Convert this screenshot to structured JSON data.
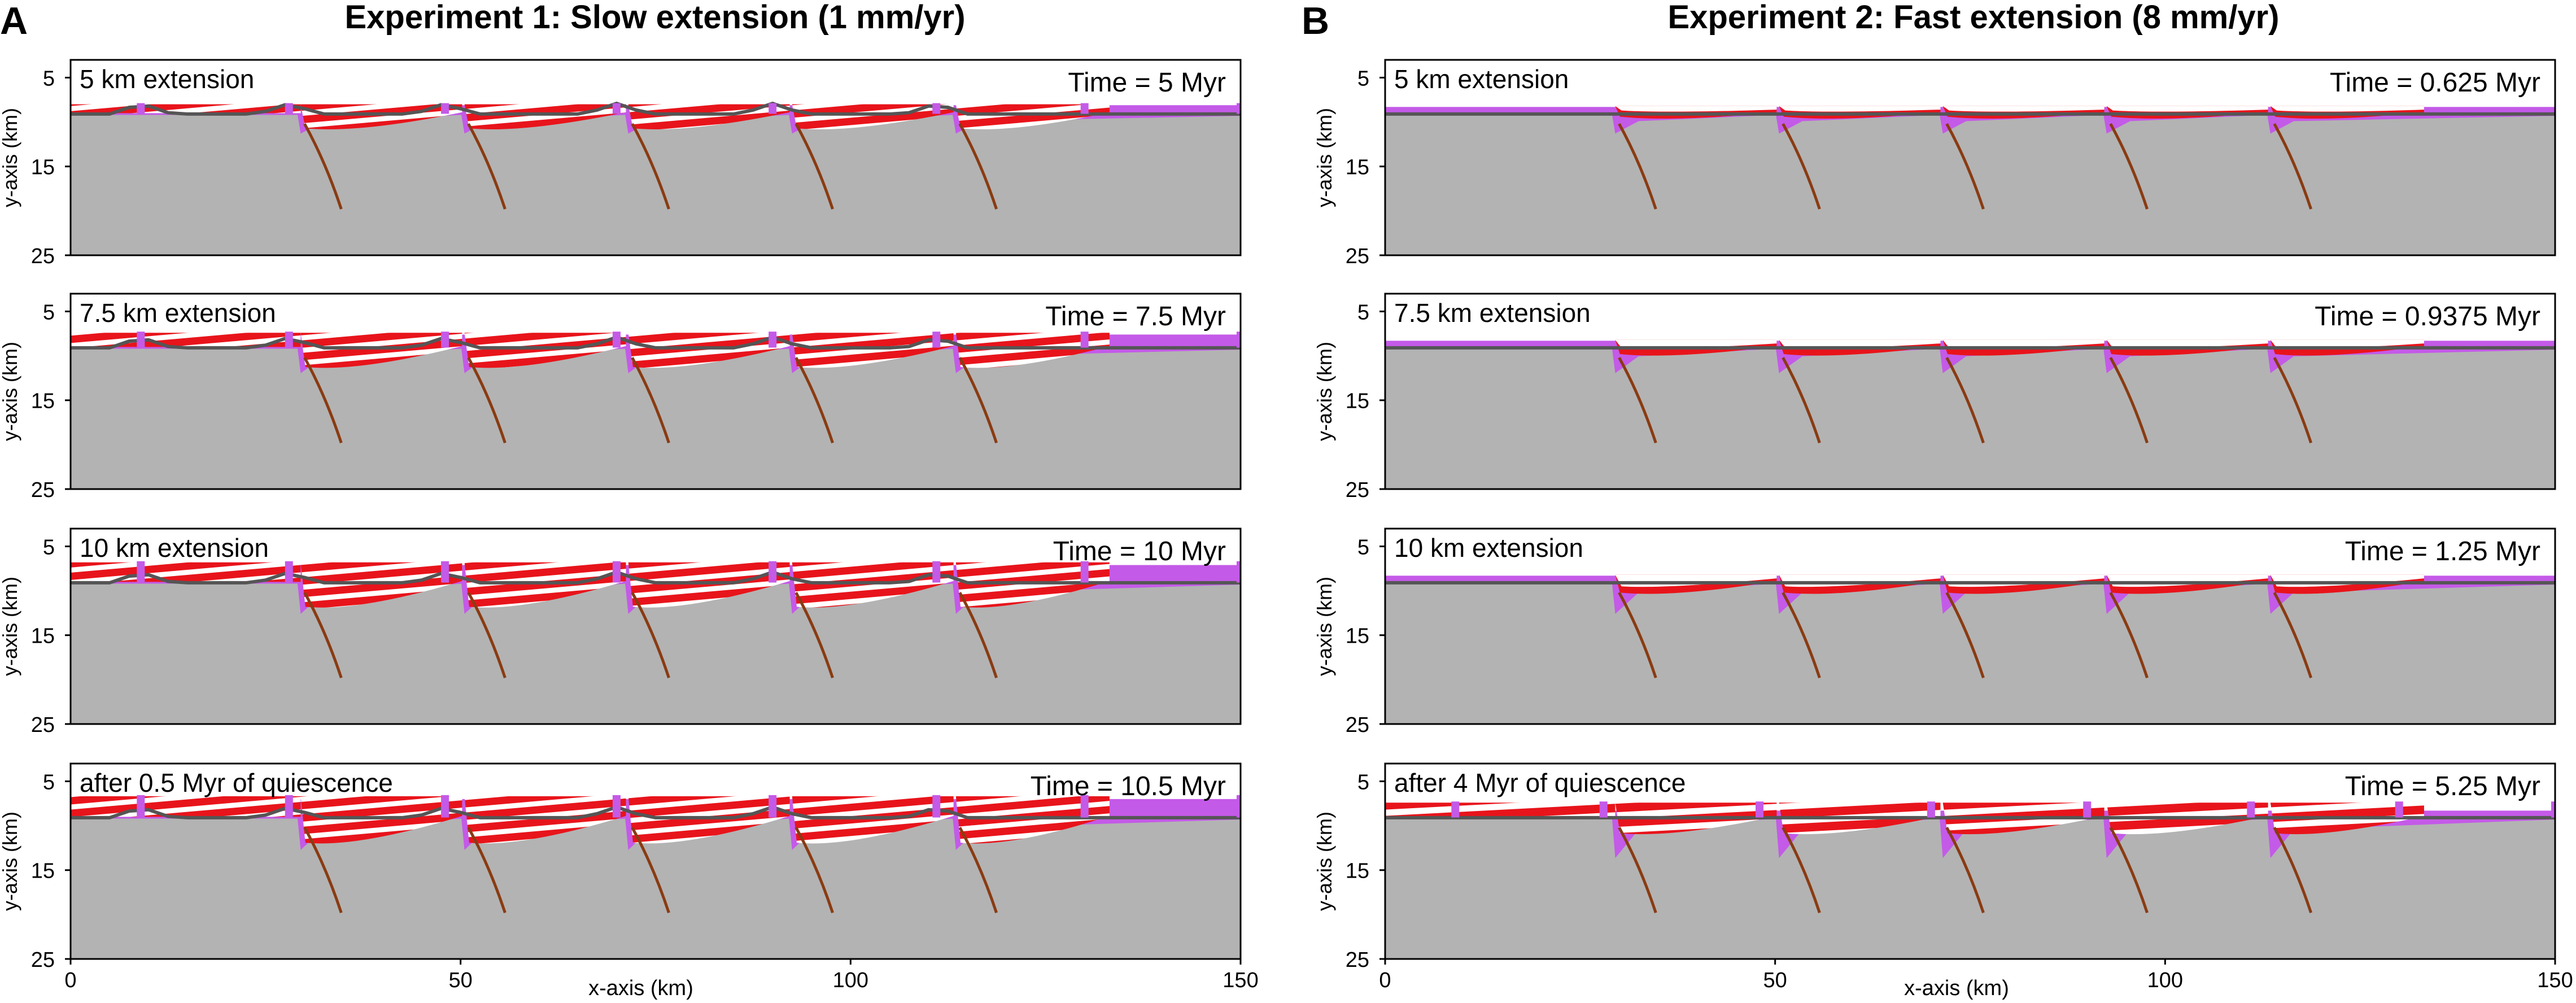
{
  "panels": [
    {
      "letter": "A",
      "title": "Experiment 1: Slow extension (1 mm/yr)",
      "mode": "slow",
      "subplots": [
        {
          "label": "5 km extension",
          "time": "Time = 5 Myr",
          "stage": 0.5
        },
        {
          "label": "7.5 km extension",
          "time": "Time = 7.5 Myr",
          "stage": 0.75
        },
        {
          "label": "10 km extension",
          "time": "Time = 10 Myr",
          "stage": 1.0
        },
        {
          "label": "after 0.5 Myr of quiescence",
          "time": "Time = 10.5 Myr",
          "stage": 1.05
        }
      ]
    },
    {
      "letter": "B",
      "title": "Experiment 2: Fast extension (8 mm/yr)",
      "mode": "fast",
      "subplots": [
        {
          "label": "5 km extension",
          "time": "Time = 0.625 Myr",
          "stage": 0.5
        },
        {
          "label": "7.5 km extension",
          "time": "Time = 0.9375 Myr",
          "stage": 0.75
        },
        {
          "label": "10 km extension",
          "time": "Time = 1.25 Myr",
          "stage": 1.0
        },
        {
          "label": "after 4 Myr of quiescence",
          "time": "Time = 5.25 Myr",
          "stage": 1.4
        }
      ]
    }
  ],
  "axes": {
    "ylabel": "y-axis (km)",
    "xlabel": "x-axis (km)",
    "yticks": [
      5,
      15,
      25
    ],
    "xticks": [
      0,
      50,
      100,
      150
    ],
    "xlim": [
      0,
      150
    ],
    "ylim": [
      25,
      3
    ]
  },
  "fault_x_km": [
    29.5,
    50.5,
    71.5,
    92.5,
    113.5
  ],
  "secondary_fault_x_km": [
    9,
    28,
    48,
    70,
    90,
    111
  ],
  "colors": {
    "basement": "#b3b3b3",
    "prerift": "#c45ae8",
    "synrift_red": "#e8141b",
    "synrift_white": "#ffffff",
    "fault": "#8a3b12",
    "horizon": "#555555",
    "frame": "#000000"
  }
}
